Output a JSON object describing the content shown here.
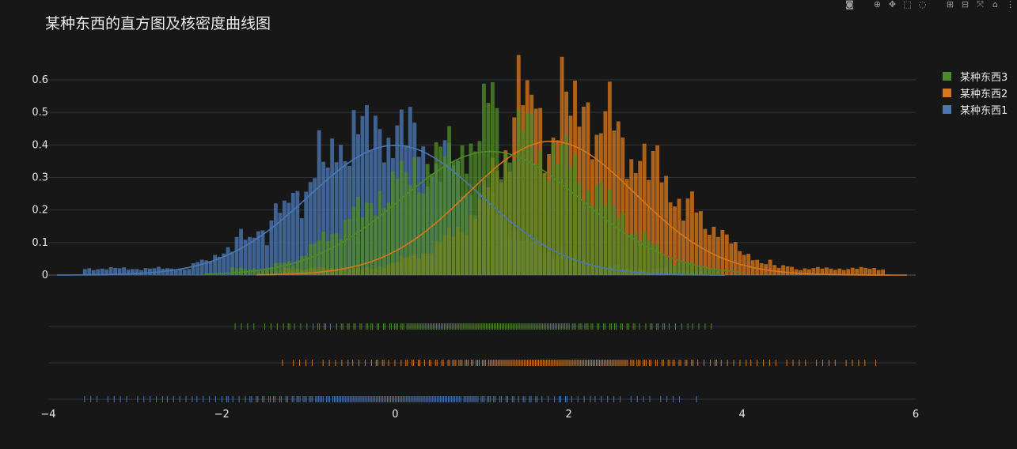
{
  "chart_data": {
    "type": "histogram",
    "title": "某种东西的直方图及核密度曲线图",
    "xlim": [
      -4,
      6
    ],
    "ylim": [
      0,
      0.66
    ],
    "x_ticks": [
      -4,
      -2,
      0,
      2,
      4,
      6
    ],
    "x_tick_labels": [
      "−4",
      "−2",
      "0",
      "2",
      "4",
      "6"
    ],
    "y_ticks": [
      0,
      0.1,
      0.2,
      0.3,
      0.4,
      0.5,
      0.6
    ],
    "y_tick_labels": [
      "0",
      "0.1",
      "0.2",
      "0.3",
      "0.4",
      "0.5",
      "0.6"
    ],
    "bin_width": 0.05,
    "grid": true,
    "legend_position": "top-right",
    "series": [
      {
        "name": "某种东西1",
        "color": "#4a77b4",
        "kde": {
          "mean": 0,
          "std": 1
        },
        "range": [
          -3.6,
          3.5
        ],
        "bins_x": [
          -3.6,
          -3.0,
          -2.8,
          -2.7,
          -2.5,
          -2.4,
          -2.3,
          -2.2,
          -2.1,
          -2.0,
          -1.9,
          -1.8,
          -1.7,
          -1.6,
          -1.5,
          -1.4,
          -1.3,
          -1.2,
          -1.1,
          -1.0,
          -0.9,
          -0.8,
          -0.7,
          -0.6,
          -0.5,
          -0.4,
          -0.3,
          -0.2,
          -0.1,
          0.0,
          0.1,
          0.2,
          0.3,
          0.4,
          0.5,
          0.6,
          0.7,
          0.8,
          0.9,
          1.0,
          1.1,
          1.2,
          1.3,
          1.4,
          1.5,
          1.6,
          1.7,
          1.8,
          1.9,
          2.0,
          2.1,
          2.2,
          2.3,
          2.4,
          2.5,
          2.6,
          2.7,
          2.8,
          2.9,
          3.0,
          3.2,
          3.5
        ],
        "bins_y": [
          0.02,
          0.02,
          0.02,
          0.02,
          0.02,
          0.02,
          0.04,
          0.04,
          0.06,
          0.08,
          0.08,
          0.12,
          0.1,
          0.16,
          0.12,
          0.2,
          0.18,
          0.26,
          0.24,
          0.3,
          0.36,
          0.3,
          0.42,
          0.4,
          0.46,
          0.44,
          0.4,
          0.48,
          0.42,
          0.46,
          0.4,
          0.44,
          0.38,
          0.34,
          0.32,
          0.36,
          0.3,
          0.28,
          0.24,
          0.22,
          0.2,
          0.18,
          0.16,
          0.12,
          0.1,
          0.1,
          0.08,
          0.06,
          0.08,
          0.05,
          0.04,
          0.04,
          0.03,
          0.02,
          0.03,
          0.02,
          0.02,
          0.02,
          0.01,
          0.02,
          0.02,
          0.01
        ]
      },
      {
        "name": "某种东西2",
        "color": "#d7761a",
        "kde": {
          "mean": 1.8,
          "std": 0.97
        },
        "range": [
          -1.3,
          5.6
        ],
        "bins_x": [
          -1.3,
          -0.9,
          -0.6,
          -0.3,
          0.0,
          0.2,
          0.4,
          0.6,
          0.8,
          0.9,
          1.0,
          1.1,
          1.2,
          1.3,
          1.4,
          1.5,
          1.6,
          1.7,
          1.8,
          1.9,
          2.0,
          2.1,
          2.2,
          2.3,
          2.4,
          2.5,
          2.6,
          2.7,
          2.8,
          2.9,
          3.0,
          3.1,
          3.2,
          3.3,
          3.4,
          3.5,
          3.6,
          3.7,
          3.8,
          3.9,
          4.0,
          4.1,
          4.2,
          4.3,
          4.4,
          4.5,
          4.6,
          4.7,
          4.8,
          5.0,
          5.2,
          5.55
        ],
        "bins_y": [
          0.02,
          0.02,
          0.02,
          0.02,
          0.04,
          0.06,
          0.08,
          0.12,
          0.16,
          0.2,
          0.24,
          0.3,
          0.34,
          0.42,
          0.62,
          0.48,
          0.52,
          0.4,
          0.44,
          0.58,
          0.46,
          0.5,
          0.56,
          0.42,
          0.5,
          0.44,
          0.4,
          0.36,
          0.4,
          0.3,
          0.34,
          0.28,
          0.26,
          0.2,
          0.22,
          0.16,
          0.14,
          0.16,
          0.12,
          0.08,
          0.06,
          0.06,
          0.04,
          0.04,
          0.02,
          0.03,
          0.02,
          0.02,
          0.02,
          0.02,
          0.02,
          0.02
        ]
      },
      {
        "name": "某种东西3",
        "color": "#4f8a28",
        "kde": {
          "mean": 1.1,
          "std": 1.05
        },
        "range": [
          -1.9,
          3.7
        ],
        "bins_x": [
          -1.9,
          -1.7,
          -1.5,
          -1.3,
          -1.2,
          -1.1,
          -1.0,
          -0.9,
          -0.8,
          -0.7,
          -0.6,
          -0.5,
          -0.4,
          -0.3,
          -0.2,
          -0.1,
          0.0,
          0.1,
          0.2,
          0.3,
          0.4,
          0.5,
          0.6,
          0.7,
          0.8,
          0.9,
          1.0,
          1.1,
          1.2,
          1.3,
          1.4,
          1.5,
          1.6,
          1.7,
          1.8,
          1.9,
          2.0,
          2.1,
          2.2,
          2.3,
          2.4,
          2.5,
          2.6,
          2.7,
          2.8,
          2.9,
          3.0,
          3.1,
          3.2,
          3.3,
          3.5,
          3.7
        ],
        "bins_y": [
          0.02,
          0.02,
          0.02,
          0.04,
          0.04,
          0.06,
          0.08,
          0.1,
          0.12,
          0.14,
          0.16,
          0.2,
          0.18,
          0.22,
          0.26,
          0.24,
          0.3,
          0.28,
          0.34,
          0.3,
          0.36,
          0.34,
          0.38,
          0.4,
          0.42,
          0.36,
          0.46,
          0.58,
          0.4,
          0.38,
          0.42,
          0.44,
          0.4,
          0.36,
          0.38,
          0.36,
          0.34,
          0.3,
          0.26,
          0.28,
          0.22,
          0.2,
          0.18,
          0.14,
          0.12,
          0.1,
          0.08,
          0.06,
          0.04,
          0.04,
          0.02,
          0.02
        ]
      }
    ],
    "legend": [
      {
        "label": "某种东西3",
        "color": "#4f8a28"
      },
      {
        "label": "某种东西2",
        "color": "#d7761a"
      },
      {
        "label": "某种东西1",
        "color": "#4a77b4"
      }
    ]
  },
  "modebar": {
    "icons": [
      "camera-icon",
      "zoom-icon",
      "pan-icon",
      "box-select-icon",
      "lasso-icon",
      "zoom-in-icon",
      "zoom-out-icon",
      "autoscale-icon",
      "reset-axes-icon",
      "spike-icon"
    ],
    "glyphs": [
      "◙",
      "⊕",
      "✥",
      "⬚",
      "◌",
      "⊞",
      "⊟",
      "⤧",
      "⌂",
      "⋮"
    ]
  },
  "colors": {
    "background": "#171717",
    "grid": "#2e3340",
    "text": "#eaeaea"
  }
}
